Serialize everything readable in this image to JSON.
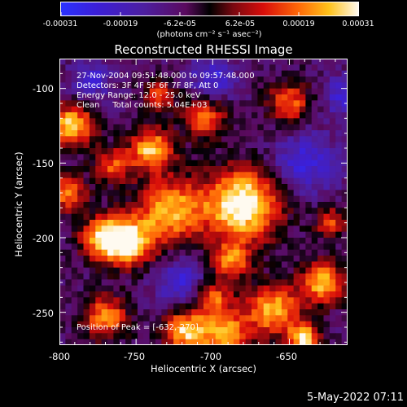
{
  "colorbar": {
    "tick_labels": [
      "-0.00031",
      "-0.00019",
      "-6.2e-05",
      "6.2e-05",
      "0.00019",
      "0.00031"
    ],
    "units_label": "(photons cm⁻² s⁻¹ asec⁻²)"
  },
  "chart_data": {
    "type": "heatmap",
    "title": "Reconstructed RHESSI Image",
    "xlabel": "Heliocentric X (arcsec)",
    "ylabel": "Heliocentric Y (arcsec)",
    "xlim": [
      -800,
      -612
    ],
    "ylim": [
      -272,
      -80
    ],
    "x_ticks": [
      "-800",
      "-750",
      "-700",
      "-650"
    ],
    "y_ticks": [
      "-100",
      "-150",
      "-200",
      "-250"
    ],
    "color_range": [
      -0.00031,
      0.00031
    ],
    "colormap": "blue-purple-red-yellow-white",
    "peak_position": [
      -632,
      -270
    ]
  },
  "annotations": {
    "line1": "27-Nov-2004 09:51:48.000 to 09:57:48.000",
    "line2": "Detectors: 3F 4F 5F 6F 7F 8F, Att 0",
    "line3": "Energy Range: 12.0 - 25.0 keV",
    "line4": "Clean     Total counts: 5.04E+03",
    "peak": "Position of Peak = [-632,-270]"
  },
  "datestamp": "5-May-2022 07:11"
}
